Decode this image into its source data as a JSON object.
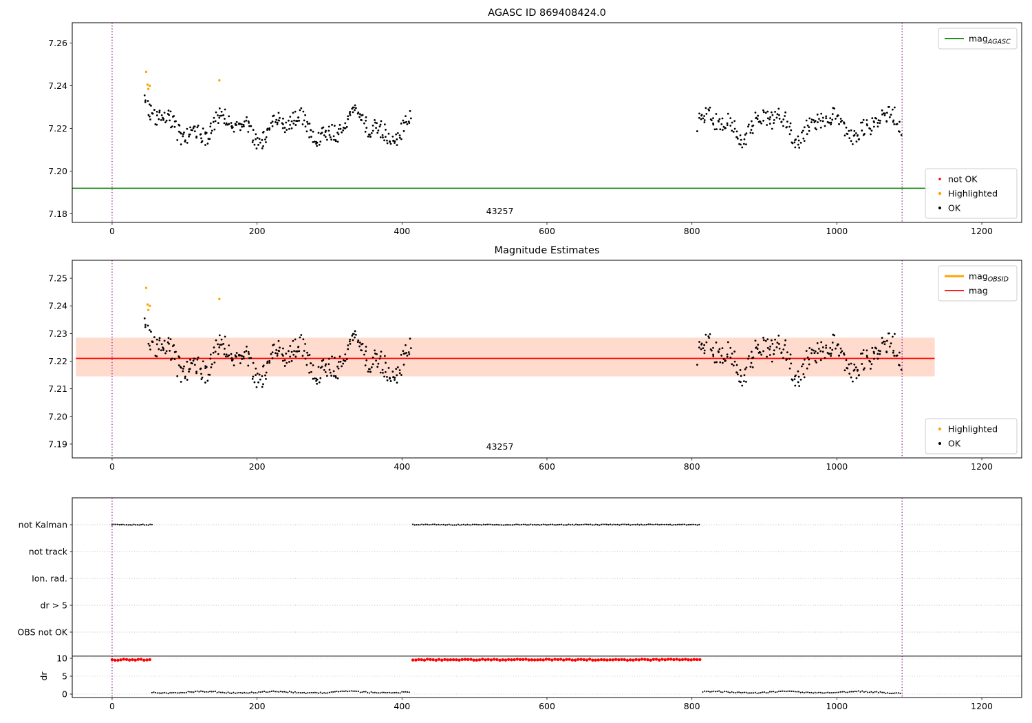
{
  "chart_data": [
    {
      "id": "plot1",
      "type": "scatter",
      "title": "AGASC ID 869408424.0",
      "xlim": [
        -55,
        1255
      ],
      "ylim": [
        7.176,
        7.2695
      ],
      "xticks": {
        "values": [
          0,
          200,
          400,
          600,
          800,
          1000,
          1200
        ],
        "labels": [
          "0",
          "200",
          "400",
          "600",
          "800",
          "1000",
          "1200"
        ]
      },
      "yticks": {
        "values": [
          7.18,
          7.2,
          7.22,
          7.24,
          7.26
        ],
        "labels": [
          "7.18",
          "7.20",
          "7.22",
          "7.24",
          "7.26"
        ]
      },
      "mag_agasc": {
        "value": 7.192,
        "span": [
          -55,
          1128
        ],
        "color": "#008000"
      },
      "vlines": {
        "x": [
          0,
          1090
        ],
        "color": "#800080"
      },
      "obsid_label": {
        "text": "43257",
        "x": 535
      },
      "scatter": {
        "color": "#000000",
        "clusters": [
          {
            "x_start": 45,
            "x_end": 412,
            "n": 330,
            "mean": 7.2205,
            "wave_amp": 0.0045,
            "wave_period": 90,
            "noise": 0.0042,
            "lead_in": {
              "until": 68,
              "slope": 0.00045
            }
          },
          {
            "x_start": 808,
            "x_end": 1088,
            "n": 235,
            "mean": 7.2215,
            "wave_amp": 0.0045,
            "wave_period": 80,
            "noise": 0.0042
          }
        ]
      },
      "highlighted_points": {
        "color": "#ffa500",
        "points": [
          [
            47,
            7.2465
          ],
          [
            49,
            7.2405
          ],
          [
            50,
            7.2385
          ],
          [
            52,
            7.24
          ],
          [
            148,
            7.2425
          ]
        ]
      },
      "legend_top": {
        "entries": [
          {
            "type": "line",
            "color": "#008000",
            "lw": 1.8,
            "label": "mag",
            "sub": "AGASC"
          }
        ]
      },
      "legend_bottom": {
        "entries": [
          {
            "type": "dot",
            "color": "#ff0000",
            "r": 1.8,
            "label": "not OK"
          },
          {
            "type": "dot",
            "color": "#ffa500",
            "r": 2.2,
            "label": "Highlighted"
          },
          {
            "type": "dot",
            "color": "#000000",
            "r": 2.0,
            "label": "OK"
          }
        ]
      }
    },
    {
      "id": "plot2",
      "type": "scatter",
      "title": "Magnitude Estimates",
      "xlim": [
        -55,
        1255
      ],
      "ylim": [
        7.185,
        7.2565
      ],
      "xticks": {
        "values": [
          0,
          200,
          400,
          600,
          800,
          1000,
          1200
        ],
        "labels": [
          "0",
          "200",
          "400",
          "600",
          "800",
          "1000",
          "1200"
        ]
      },
      "yticks": {
        "values": [
          7.19,
          7.2,
          7.21,
          7.22,
          7.23,
          7.24,
          7.25
        ],
        "labels": [
          "7.19",
          "7.20",
          "7.21",
          "7.22",
          "7.23",
          "7.24",
          "7.25"
        ]
      },
      "mag_line": {
        "value": 7.221,
        "band": [
          7.2145,
          7.2285
        ],
        "span": [
          -50,
          1135
        ],
        "color": "#ff0000",
        "band_color": "rgba(255,110,60,0.25)"
      },
      "vlines": {
        "x": [
          0,
          1090
        ],
        "color": "#800080"
      },
      "obsid_label": {
        "text": "43257",
        "x": 535
      },
      "scatter": {
        "color": "#000000",
        "same_as": "plot1"
      },
      "highlighted_points": {
        "color": "#ffa500",
        "points": [
          [
            47,
            7.2465
          ],
          [
            49,
            7.2405
          ],
          [
            50,
            7.2385
          ],
          [
            52,
            7.24
          ],
          [
            148,
            7.2425
          ]
        ]
      },
      "legend_top": {
        "entries": [
          {
            "type": "line",
            "color": "#ffa500",
            "lw": 3,
            "label": "mag",
            "sub": "OBSID"
          },
          {
            "type": "line",
            "color": "#ff0000",
            "lw": 1.8,
            "label": "mag"
          }
        ]
      },
      "legend_bottom": {
        "entries": [
          {
            "type": "dot",
            "color": "#ffa500",
            "r": 2.2,
            "label": "Highlighted"
          },
          {
            "type": "dot",
            "color": "#000000",
            "r": 2.0,
            "label": "OK"
          }
        ]
      }
    },
    {
      "id": "plot3",
      "type": "flags",
      "xlim": [
        -55,
        1255
      ],
      "xticks": {
        "values": [
          0,
          200,
          400,
          600,
          800,
          1000,
          1200
        ],
        "labels": [
          "0",
          "200",
          "400",
          "600",
          "800",
          "1000",
          "1200"
        ]
      },
      "rows": [
        {
          "label": "not Kalman",
          "segments": [
            [
              0,
              55
            ],
            [
              415,
              812
            ]
          ]
        },
        {
          "label": "not track",
          "segments": []
        },
        {
          "label": "Ion. rad.",
          "segments": []
        },
        {
          "label": "dr > 5",
          "segments": []
        },
        {
          "label": "OBS not OK",
          "segments": []
        }
      ],
      "dr": {
        "ylabel": "dr",
        "ticks": {
          "values": [
            0,
            5,
            10
          ],
          "labels": [
            "0",
            "5",
            "10"
          ]
        },
        "hline": 10.6,
        "red": {
          "color": "#ff0000",
          "value": 9.6,
          "segments": [
            [
              0,
              55
            ],
            [
              415,
              812
            ]
          ]
        },
        "black": {
          "color": "#000000",
          "value": 0.5,
          "segments": [
            [
              55,
              412
            ],
            [
              815,
              1088
            ]
          ]
        }
      },
      "vlines": {
        "x": [
          0,
          1090
        ],
        "color": "#800080"
      }
    }
  ]
}
